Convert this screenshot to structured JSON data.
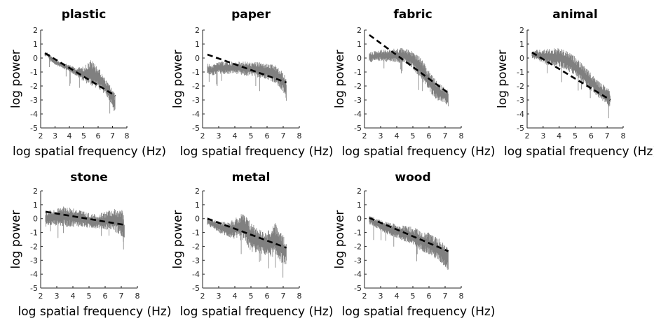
{
  "chart_data": [
    {
      "type": "line",
      "title": "plastic",
      "xlabel": "log spatial frequency (Hz)",
      "ylabel": "log power",
      "xlim": [
        2,
        8
      ],
      "ylim": [
        -5,
        2
      ],
      "xticks": [
        "2",
        "3",
        "4",
        "5",
        "6",
        "7",
        "8"
      ],
      "yticks": [
        "2",
        "1",
        "0",
        "-1",
        "-2",
        "-3",
        "-4",
        "-5"
      ],
      "series": [
        {
          "role": "spectrum",
          "color": "#808080",
          "x": [
            2.3,
            2.5,
            2.7,
            3.0,
            3.5,
            4.0,
            4.5,
            5.0,
            5.5,
            6.0,
            6.5,
            7.0,
            7.2
          ],
          "low": [
            0.1,
            0.1,
            -0.3,
            -0.5,
            -0.7,
            -1.0,
            -1.3,
            -1.7,
            -2.0,
            -2.2,
            -2.6,
            -3.4,
            -4.2
          ],
          "high": [
            0.4,
            0.4,
            0.2,
            -0.1,
            -0.3,
            -0.5,
            -0.7,
            -0.6,
            -0.1,
            -0.6,
            -1.5,
            -2.2,
            -2.6
          ]
        },
        {
          "role": "fit",
          "color": "#000000",
          "x": [
            2.3,
            7.2
          ],
          "y": [
            0.35,
            -2.7
          ]
        }
      ]
    },
    {
      "type": "line",
      "title": "paper",
      "xlabel": "log spatial frequency (Hz)",
      "ylabel": "log power",
      "xlim": [
        2,
        8
      ],
      "ylim": [
        -5,
        2
      ],
      "xticks": [
        "2",
        "3",
        "4",
        "5",
        "6",
        "7",
        "8"
      ],
      "yticks": [
        "2",
        "1",
        "0",
        "-1",
        "-2",
        "-3",
        "-4",
        "-5"
      ],
      "series": [
        {
          "role": "spectrum",
          "color": "#808080",
          "x": [
            2.3,
            2.6,
            3.0,
            3.5,
            4.0,
            4.5,
            5.0,
            5.5,
            6.0,
            6.5,
            7.0,
            7.2
          ],
          "low": [
            -1.2,
            -1.3,
            -1.1,
            -1.2,
            -1.1,
            -1.3,
            -1.3,
            -1.4,
            -1.5,
            -1.8,
            -2.5,
            -3.1
          ],
          "high": [
            -0.4,
            -0.5,
            -0.3,
            -0.2,
            -0.3,
            -0.2,
            -0.3,
            -0.3,
            -0.4,
            -0.5,
            -1.0,
            -1.5
          ]
        },
        {
          "role": "fit",
          "color": "#000000",
          "x": [
            2.3,
            7.2
          ],
          "y": [
            0.25,
            -1.75
          ]
        }
      ]
    },
    {
      "type": "line",
      "title": "fabric",
      "xlabel": "log spatial frequency (Hz)",
      "ylabel": "log power",
      "xlim": [
        2,
        8
      ],
      "ylim": [
        -5,
        2
      ],
      "xticks": [
        "2",
        "3",
        "4",
        "5",
        "6",
        "7",
        "8"
      ],
      "yticks": [
        "2",
        "1",
        "0",
        "-1",
        "-2",
        "-3",
        "-4",
        "-5"
      ],
      "series": [
        {
          "role": "spectrum",
          "color": "#808080",
          "x": [
            2.3,
            2.6,
            3.0,
            3.5,
            4.0,
            4.5,
            5.0,
            5.5,
            6.0,
            6.5,
            7.0,
            7.2
          ],
          "low": [
            -0.3,
            -0.3,
            -0.2,
            -0.3,
            -0.3,
            -0.4,
            -0.8,
            -1.5,
            -2.4,
            -3.0,
            -3.3,
            -3.5
          ],
          "high": [
            0.4,
            0.5,
            0.6,
            0.6,
            0.7,
            0.7,
            0.5,
            0.0,
            -0.9,
            -1.7,
            -2.1,
            -2.3
          ]
        },
        {
          "role": "fit",
          "color": "#000000",
          "x": [
            2.3,
            7.2
          ],
          "y": [
            1.65,
            -2.5
          ]
        }
      ]
    },
    {
      "type": "line",
      "title": "animal",
      "xlabel": "log spatial frequency (Hz)",
      "ylabel": "log power",
      "xlim": [
        2,
        8
      ],
      "ylim": [
        -5,
        2
      ],
      "xticks": [
        "2",
        "3",
        "4",
        "5",
        "6",
        "7",
        "8"
      ],
      "yticks": [
        "2",
        "1",
        "0",
        "-1",
        "-2",
        "-3",
        "-4",
        "-5"
      ],
      "series": [
        {
          "role": "spectrum",
          "color": "#808080",
          "x": [
            2.3,
            2.6,
            3.0,
            3.5,
            4.0,
            4.5,
            5.0,
            5.5,
            6.0,
            6.5,
            7.0,
            7.2
          ],
          "low": [
            0.0,
            -0.2,
            -0.4,
            -0.6,
            -0.7,
            -0.9,
            -1.3,
            -1.8,
            -2.4,
            -2.9,
            -3.3,
            -3.6
          ],
          "high": [
            0.4,
            0.6,
            0.6,
            0.7,
            0.7,
            0.5,
            0.1,
            -0.5,
            -1.1,
            -1.7,
            -2.1,
            -2.3
          ]
        },
        {
          "role": "fit",
          "color": "#000000",
          "x": [
            2.3,
            7.2
          ],
          "y": [
            0.4,
            -3.0
          ]
        }
      ]
    },
    {
      "type": "line",
      "title": "stone",
      "xlabel": "log spatial frequency (Hz)",
      "ylabel": "log power",
      "xlim": [
        2,
        8
      ],
      "ylim": [
        -5,
        2
      ],
      "xticks": [
        "2",
        "3",
        "4",
        "5",
        "6",
        "7",
        "8"
      ],
      "yticks": [
        "2",
        "1",
        "0",
        "-1",
        "-2",
        "-3",
        "-4",
        "-5"
      ],
      "series": [
        {
          "role": "spectrum",
          "color": "#808080",
          "x": [
            2.3,
            2.6,
            3.0,
            3.5,
            4.0,
            4.5,
            5.0,
            5.5,
            6.0,
            6.5,
            7.0,
            7.2
          ],
          "low": [
            -0.6,
            -0.5,
            -0.5,
            -0.6,
            -0.6,
            -0.6,
            -0.7,
            -0.7,
            -0.8,
            -0.8,
            -1.4,
            -1.9
          ],
          "high": [
            0.6,
            0.6,
            0.7,
            0.9,
            0.8,
            0.6,
            0.4,
            0.3,
            0.5,
            0.7,
            0.8,
            0.0
          ]
        },
        {
          "role": "fit",
          "color": "#000000",
          "x": [
            2.3,
            7.2
          ],
          "y": [
            0.5,
            -0.45
          ]
        }
      ]
    },
    {
      "type": "line",
      "title": "metal",
      "xlabel": "log spatial frequency (Hz)",
      "ylabel": "log power",
      "xlim": [
        2,
        8
      ],
      "ylim": [
        -5,
        2
      ],
      "xticks": [
        "2",
        "3",
        "4",
        "5",
        "6",
        "7",
        "8"
      ],
      "yticks": [
        "2",
        "1",
        "0",
        "-1",
        "-2",
        "-3",
        "-4",
        "-5"
      ],
      "series": [
        {
          "role": "spectrum",
          "color": "#808080",
          "x": [
            2.3,
            2.6,
            3.0,
            3.5,
            4.0,
            4.5,
            5.0,
            5.5,
            6.0,
            6.5,
            7.0,
            7.2
          ],
          "low": [
            -0.5,
            -0.7,
            -1.0,
            -1.3,
            -1.5,
            -1.6,
            -2.4,
            -2.5,
            -2.7,
            -2.8,
            -3.3,
            -3.3
          ],
          "high": [
            0.1,
            0.0,
            -0.2,
            -0.2,
            0.0,
            0.4,
            -0.2,
            -0.8,
            -1.0,
            -0.3,
            -1.2,
            -1.8
          ]
        },
        {
          "role": "fit",
          "color": "#000000",
          "x": [
            2.3,
            7.2
          ],
          "y": [
            0.0,
            -2.1
          ]
        }
      ]
    },
    {
      "type": "line",
      "title": "wood",
      "xlabel": "log spatial frequency (Hz)",
      "ylabel": "log power",
      "xlim": [
        2,
        8
      ],
      "ylim": [
        -5,
        2
      ],
      "xticks": [
        "2",
        "3",
        "4",
        "5",
        "6",
        "7",
        "8"
      ],
      "yticks": [
        "2",
        "1",
        "0",
        "-1",
        "-2",
        "-3",
        "-4",
        "-5"
      ],
      "series": [
        {
          "role": "spectrum",
          "color": "#808080",
          "x": [
            2.3,
            2.6,
            3.0,
            3.5,
            4.0,
            4.5,
            5.0,
            5.5,
            6.0,
            6.5,
            7.0,
            7.2
          ],
          "low": [
            -0.4,
            -0.6,
            -0.9,
            -1.2,
            -1.4,
            -1.7,
            -2.0,
            -2.3,
            -2.6,
            -3.0,
            -3.5,
            -3.8
          ],
          "high": [
            0.2,
            0.1,
            -0.1,
            -0.3,
            -0.4,
            -0.5,
            -0.6,
            -0.9,
            -1.0,
            -1.3,
            -1.8,
            -2.1
          ]
        },
        {
          "role": "fit",
          "color": "#000000",
          "x": [
            2.3,
            7.2
          ],
          "y": [
            0.05,
            -2.35
          ]
        }
      ]
    }
  ]
}
